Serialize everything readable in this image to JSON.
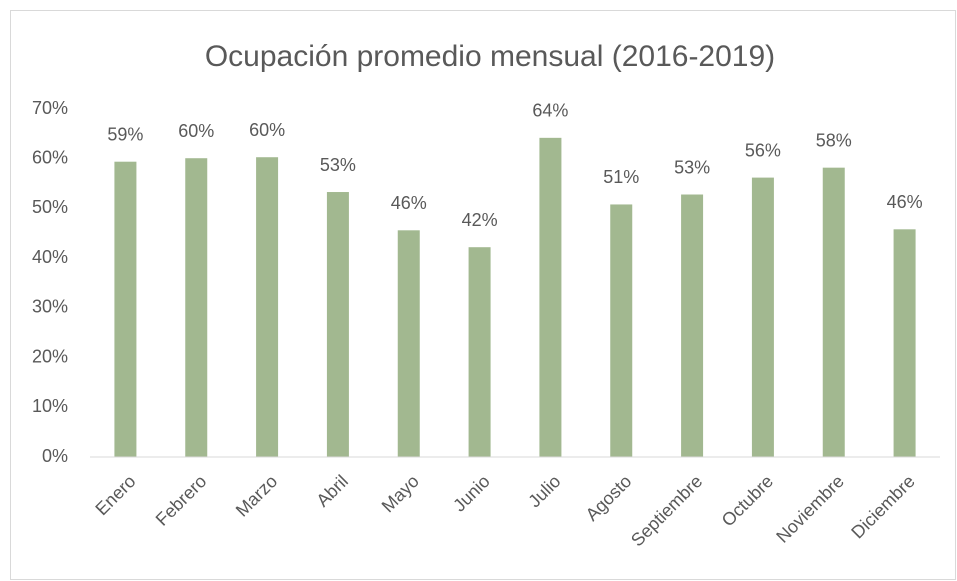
{
  "chart_data": {
    "type": "bar",
    "title": "Ocupación promedio mensual (2016-2019)",
    "categories": [
      "Enero",
      "Febrero",
      "Marzo",
      "Abril",
      "Mayo",
      "Junio",
      "Julio",
      "Agosto",
      "Septiembre",
      "Octubre",
      "Noviembre",
      "Diciembre"
    ],
    "values": [
      59.4,
      60.1,
      60.3,
      53.3,
      45.6,
      42.2,
      64.2,
      50.8,
      52.8,
      56.2,
      58.2,
      45.8
    ],
    "value_labels": [
      "59%",
      "60%",
      "60%",
      "53%",
      "46%",
      "42%",
      "64%",
      "51%",
      "53%",
      "56%",
      "58%",
      "46%"
    ],
    "color": "#a2b890",
    "ylim": [
      0,
      70
    ],
    "yticks": [
      {
        "value": 0,
        "label": "0%"
      },
      {
        "value": 10,
        "label": "10%"
      },
      {
        "value": 20,
        "label": "20%"
      },
      {
        "value": 30,
        "label": "30%"
      },
      {
        "value": 40,
        "label": "40%"
      },
      {
        "value": 50,
        "label": "50%"
      },
      {
        "value": 60,
        "label": "60%"
      },
      {
        "value": 70,
        "label": "70%"
      }
    ],
    "grid": false
  }
}
